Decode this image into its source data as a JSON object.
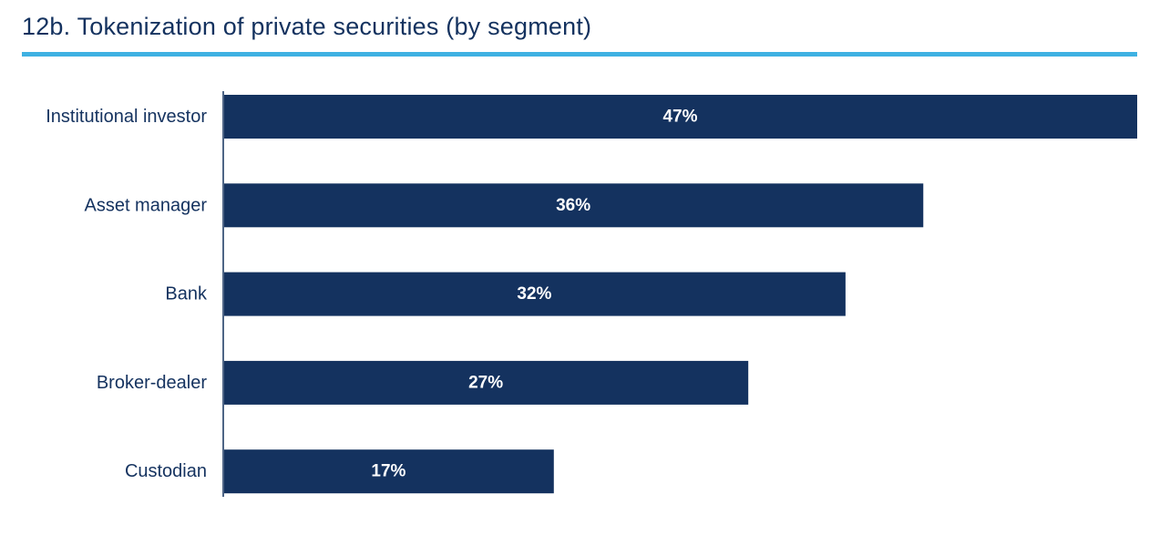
{
  "chart_data": {
    "type": "bar",
    "orientation": "horizontal",
    "title": "12b. Tokenization of private securities (by segment)",
    "categories": [
      "Institutional investor",
      "Asset manager",
      "Bank",
      "Broker-dealer",
      "Custodian"
    ],
    "values": [
      47,
      36,
      32,
      27,
      17
    ],
    "value_labels": [
      "47%",
      "36%",
      "32%",
      "27%",
      "17%"
    ],
    "unit": "%",
    "xlim": [
      0,
      47
    ],
    "grid": false,
    "legend": "none",
    "colors": {
      "bar": "#14325f",
      "title": "#14325f",
      "rule": "#3eb1e2",
      "value_text": "#ffffff"
    }
  }
}
